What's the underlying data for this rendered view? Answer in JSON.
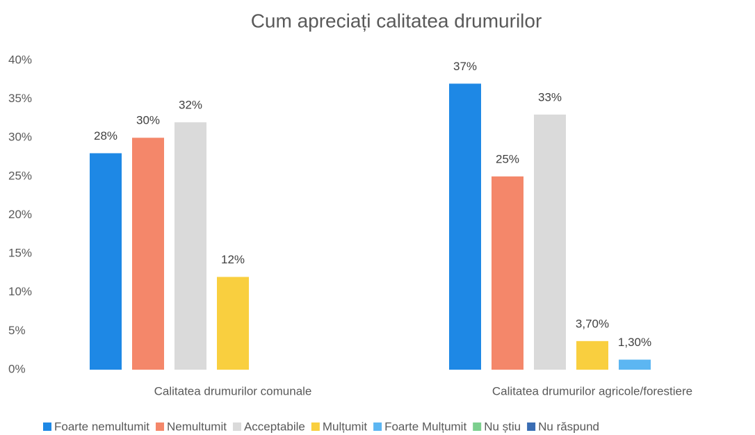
{
  "chart_data": {
    "type": "bar",
    "title": "Cum apreciați calitatea drumurilor",
    "categories": [
      "Calitatea drumurilor comunale",
      "Calitatea drumurilor agricole/forestiere"
    ],
    "series": [
      {
        "name": "Foarte nemultumit",
        "color": "#1e88e5",
        "values": [
          28,
          37
        ],
        "value_labels": [
          "28%",
          "37%"
        ]
      },
      {
        "name": "Nemultumit",
        "color": "#f4876a",
        "values": [
          30,
          25
        ],
        "value_labels": [
          "30%",
          "25%"
        ]
      },
      {
        "name": "Acceptabile",
        "color": "#dadada",
        "values": [
          32,
          33
        ],
        "value_labels": [
          "32%",
          "33%"
        ]
      },
      {
        "name": "Mulțumit",
        "color": "#f9cf3f",
        "values": [
          12,
          3.7
        ],
        "value_labels": [
          "12%",
          "3,70%"
        ]
      },
      {
        "name": "Foarte Mulțumit",
        "color": "#5cb6f2",
        "values": [
          null,
          1.3
        ],
        "value_labels": [
          null,
          "1,30%"
        ]
      },
      {
        "name": "Nu știu",
        "color": "#7ccf8e",
        "values": [
          null,
          null
        ]
      },
      {
        "name": "Nu răspund",
        "color": "#3a6db3",
        "values": [
          null,
          null
        ]
      }
    ],
    "ylim": [
      0,
      40
    ],
    "yticks": [
      {
        "value": 0,
        "label": "0%"
      },
      {
        "value": 5,
        "label": "5%"
      },
      {
        "value": 10,
        "label": "10%"
      },
      {
        "value": 15,
        "label": "15%"
      },
      {
        "value": 20,
        "label": "20%"
      },
      {
        "value": 25,
        "label": "25%"
      },
      {
        "value": 30,
        "label": "30%"
      },
      {
        "value": 35,
        "label": "35%"
      },
      {
        "value": 40,
        "label": "40%"
      }
    ],
    "grid": false,
    "legend": "bottom"
  }
}
